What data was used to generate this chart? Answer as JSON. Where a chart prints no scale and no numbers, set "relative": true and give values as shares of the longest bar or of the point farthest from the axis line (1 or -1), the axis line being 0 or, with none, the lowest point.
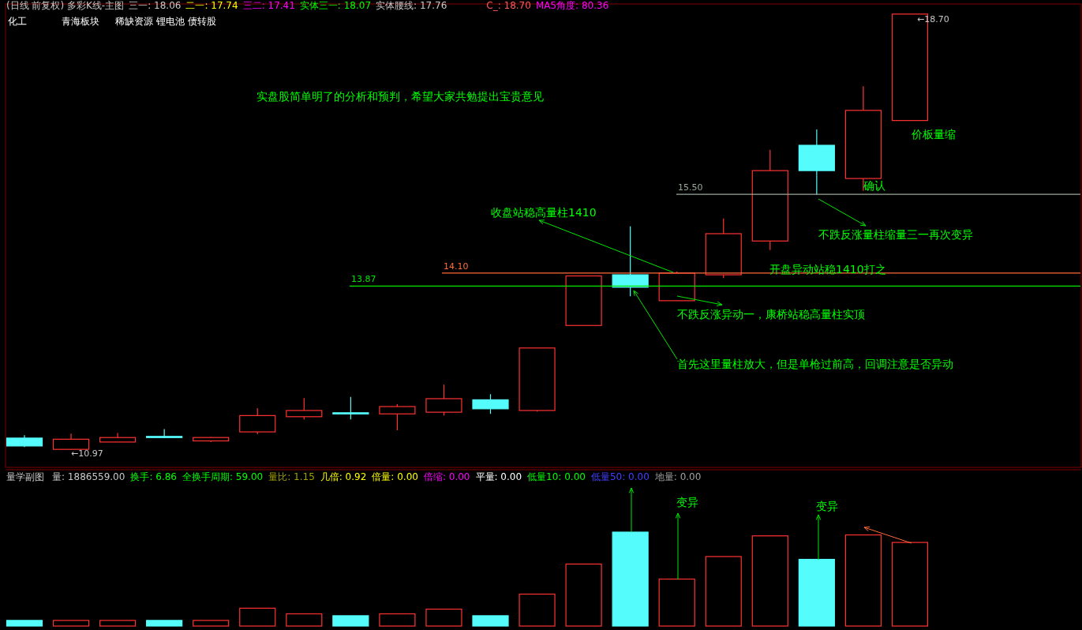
{
  "chart_data": [
    {
      "type": "candlestick",
      "title": "(日线 前复权) 多彩K线-主图",
      "categories": [
        null,
        null,
        null,
        null,
        null,
        null,
        null,
        null,
        null,
        null,
        null,
        null,
        null,
        null,
        null,
        null,
        null,
        null,
        null,
        null
      ],
      "ohlc": [
        [
          11.17,
          11.22,
          11.01,
          11.03
        ],
        [
          10.97,
          11.25,
          10.97,
          11.15
        ],
        [
          11.1,
          11.26,
          11.1,
          11.18
        ],
        [
          11.2,
          11.33,
          11.17,
          11.18
        ],
        [
          11.12,
          11.19,
          11.1,
          11.18
        ],
        [
          11.28,
          11.7,
          11.24,
          11.57
        ],
        [
          11.55,
          11.88,
          11.5,
          11.66
        ],
        [
          11.62,
          11.9,
          11.5,
          11.6
        ],
        [
          11.6,
          11.77,
          11.31,
          11.73
        ],
        [
          11.63,
          12.12,
          11.57,
          11.87
        ],
        [
          11.85,
          11.95,
          11.6,
          11.69
        ],
        [
          11.66,
          12.77,
          11.64,
          12.77
        ],
        [
          13.17,
          14.05,
          13.17,
          14.05
        ],
        [
          14.07,
          14.93,
          13.69,
          13.85
        ],
        [
          13.61,
          14.13,
          13.61,
          14.1
        ],
        [
          14.07,
          15.07,
          14.01,
          14.8
        ],
        [
          14.67,
          16.29,
          14.51,
          15.92
        ],
        [
          16.37,
          16.65,
          15.49,
          15.92
        ],
        [
          15.78,
          17.42,
          15.56,
          16.99
        ],
        [
          16.81,
          18.7,
          16.81,
          18.7
        ]
      ],
      "colors": [
        "#54fcfc",
        "#ff3232",
        "#ff3232",
        "#54fcfc",
        "#ff3232",
        "#ff3232",
        "#ff3232",
        "#54fcfc",
        "#ff3232",
        "#ff3232",
        "#54fcfc",
        "#ff3232",
        "#ff3232",
        "#54fcfc",
        "#ff3232",
        "#ff3232",
        "#ff3232",
        "#54fcfc",
        "#ff3232",
        "#ff3232"
      ],
      "ylim": [
        10.65,
        18.88
      ],
      "ref_lines": [
        {
          "axis": "y",
          "value": 14.1,
          "label": "14.10",
          "color": "#ff6a3a"
        },
        {
          "axis": "y",
          "value": 13.87,
          "label": "13.87",
          "color": "#00e600"
        },
        {
          "axis": "y",
          "value": 15.5,
          "label": "15.50",
          "color": "#9aa89a"
        }
      ],
      "annotations": [
        "三一: 18.06",
        "二一: 17.74",
        "三二: 17.41",
        "实体三一: 18.07",
        "实体腰线: 17.76",
        "C_: 18.70",
        "MA5角度: 80.36",
        "化工",
        "青海板块",
        "稀缺资源 锂电池 债转股",
        "实盘股简单明了的分析和预判，希望大家共勉提出宝贵意见",
        "价板量缩",
        "确认",
        "不跌反涨量柱缩量三一再次变异",
        "收盘站稳高量柱1410",
        "开盘异动站稳1410打之",
        "不跌反涨异动一，康桥站稳高量柱实顶",
        "首先这里量柱放大，但是单枪过前高，回调注意是否异动",
        "←10.97",
        "←18.70"
      ]
    },
    {
      "type": "bar",
      "title": "量学副图",
      "relative": true,
      "categories": [
        null,
        null,
        null,
        null,
        null,
        null,
        null,
        null,
        null,
        null,
        null,
        null,
        null,
        null,
        null,
        null,
        null,
        null,
        null,
        null
      ],
      "values": [
        0.06,
        0.06,
        0.06,
        0.06,
        0.06,
        0.19,
        0.13,
        0.11,
        0.13,
        0.18,
        0.11,
        0.34,
        0.66,
        1,
        0.5,
        0.74,
        0.96,
        0.71,
        0.97,
        0.89
      ],
      "colors": [
        "#54fcfc",
        "#ff3232",
        "#ff3232",
        "#54fcfc",
        "#ff3232",
        "#ff3232",
        "#ff3232",
        "#54fcfc",
        "#ff3232",
        "#ff3232",
        "#54fcfc",
        "#ff3232",
        "#ff3232",
        "#54fcfc",
        "#ff3232",
        "#ff3232",
        "#ff3232",
        "#54fcfc",
        "#ff3232",
        "#ff3232"
      ],
      "annotations": [
        "量: 1886559.00",
        "换手: 6.86",
        "全换手周期: 59.00",
        "量比: 1.15",
        "几倍: 0.92",
        "倍量: 0.00",
        "倍缩: 0.00",
        "平量: 0.00",
        "低量10: 0.00",
        "低量50: 0.00",
        "地量: 0.00",
        "变异",
        "变异"
      ]
    }
  ]
}
